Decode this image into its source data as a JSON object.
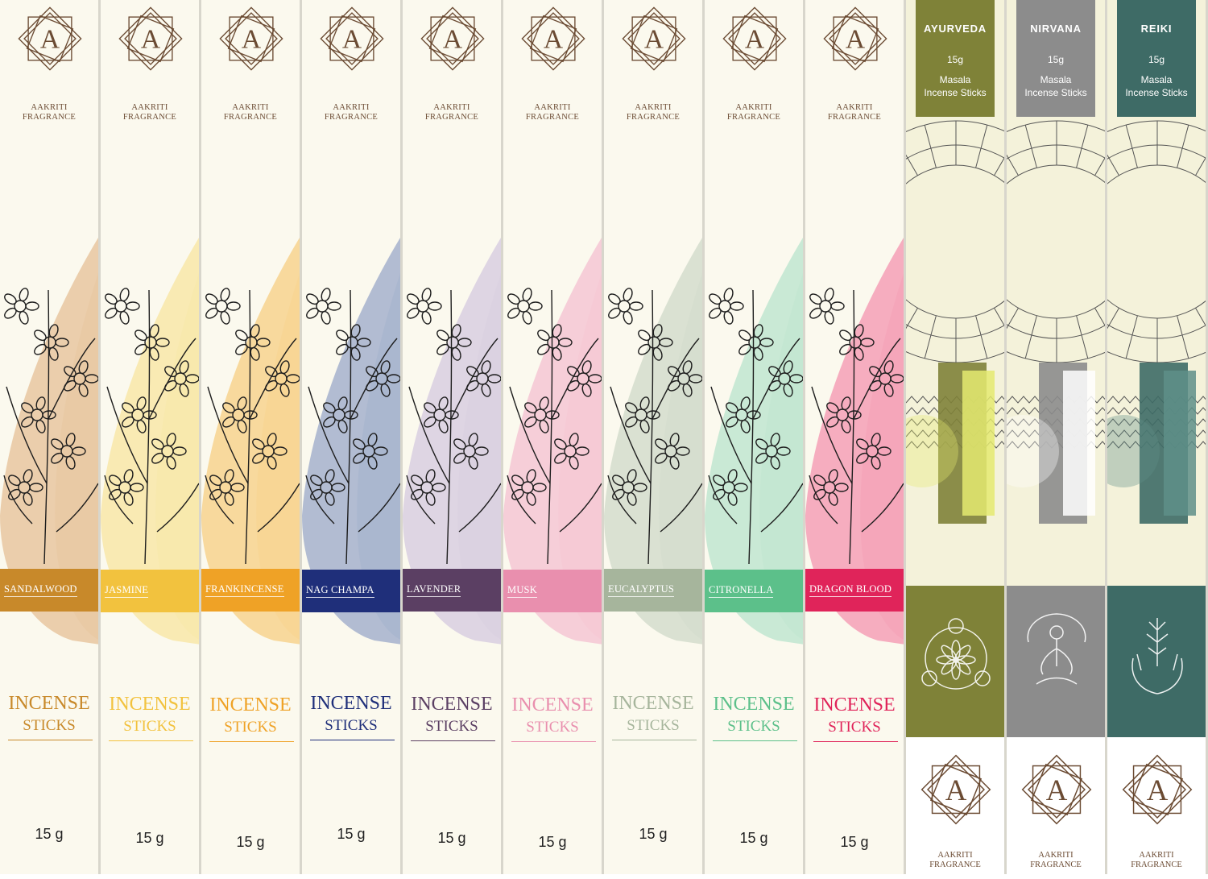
{
  "brand": "AAKRITI FRAGRANCE",
  "brand_line1": "AAKRITI",
  "brand_line2": "FRAGRANCE",
  "logo_letter": "A",
  "products": [
    {
      "name": "SANDALWOOD",
      "color": "#c8892a",
      "tint": "#e8c7a0",
      "label1": "INCENSE",
      "label2": "STICKS",
      "weight": "15 g"
    },
    {
      "name": "JASMINE",
      "color": "#f2c23e",
      "tint": "#f8e7a8",
      "label1": "INCENSE",
      "label2": "STICKS",
      "weight": "15 g"
    },
    {
      "name": "FRANKINCENSE",
      "color": "#efa226",
      "tint": "#f7d48e",
      "label1": "INCENSE",
      "label2": "STICKS",
      "weight": "15 g"
    },
    {
      "name": "NAG CHAMPA",
      "color": "#1f2f7a",
      "tint": "#a4b2cc",
      "label1": "INCENSE",
      "label2": "STICKS",
      "weight": "15 g"
    },
    {
      "name": "LAVENDER",
      "color": "#5b3f63",
      "tint": "#d8cfe0",
      "label1": "INCENSE",
      "label2": "STICKS",
      "weight": "15 g"
    },
    {
      "name": "MUSK",
      "color": "#e98fae",
      "tint": "#f5c7d4",
      "label1": "INCENSE",
      "label2": "STICKS",
      "weight": "15 g"
    },
    {
      "name": "EUCALYPTUS",
      "color": "#a6b59c",
      "tint": "#d4ddcc",
      "label1": "INCENSE",
      "label2": "STICKS",
      "weight": "15 g"
    },
    {
      "name": "CITRONELLA",
      "color": "#5cc08a",
      "tint": "#bfe6d0",
      "label1": "INCENSE",
      "label2": "STICKS",
      "weight": "15 g"
    },
    {
      "name": "DRAGON BLOOD",
      "color": "#e0245a",
      "tint": "#f4a0b6",
      "label1": "INCENSE",
      "label2": "STICKS",
      "weight": "15 g"
    }
  ],
  "masala": [
    {
      "name": "AYURVEDA",
      "weight": "15g",
      "type_line1": "Masala",
      "type_line2": "Incense Sticks",
      "color": "#7f8238",
      "accent": "#e4ea70",
      "icon": "wellness-circle-icon"
    },
    {
      "name": "NIRVANA",
      "weight": "15g",
      "type_line1": "Masala",
      "type_line2": "Incense Sticks",
      "color": "#8c8c8c",
      "accent": "#ffffff",
      "icon": "meditation-figure-icon"
    },
    {
      "name": "REIKI",
      "weight": "15g",
      "type_line1": "Masala",
      "type_line2": "Incense Sticks",
      "color": "#3e6b66",
      "accent": "#5e8f88",
      "icon": "healing-hands-icon"
    }
  ]
}
